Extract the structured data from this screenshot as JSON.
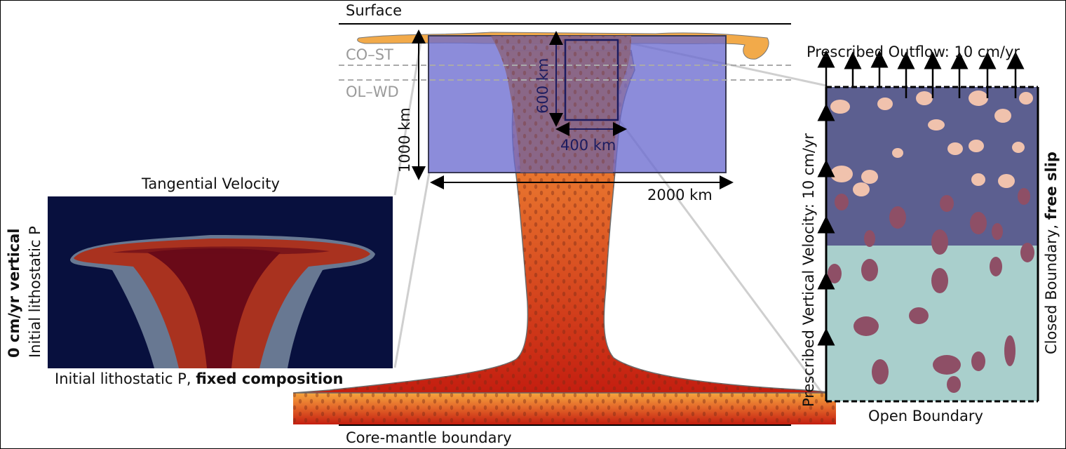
{
  "top_label": "Surface",
  "bottom_label": "Core-mantle boundary",
  "phase_lines": [
    "CO–ST",
    "OL–WD"
  ],
  "dimensions": {
    "depth_small": "600 km",
    "width_small": "400 km",
    "depth_large": "1000 km",
    "width_large": "2000 km"
  },
  "left_panel": {
    "title": "Tangential Velocity",
    "side_bold": "0 cm/yr vertical",
    "side_normal": "Initial lithostatic P",
    "bottom_normal": "Initial lithostatic P, ",
    "bottom_bold": "fixed composition"
  },
  "right_panel": {
    "top": "Prescribed Outflow: 10 cm/yr",
    "left": "Prescribed Vertical Velocity: 10 cm/yr",
    "right_normal": "Closed Boundary, ",
    "right_bold": "free slip",
    "bottom": "Open Boundary"
  },
  "colors": {
    "plume_top": "#f5a23c",
    "plume_bottom": "#c41e10",
    "box_fill": "#6c6cd0",
    "zoom_upper": "#5c5f90",
    "zoom_lower": "#a9cfcc",
    "velocity_bg": "#08103e"
  }
}
